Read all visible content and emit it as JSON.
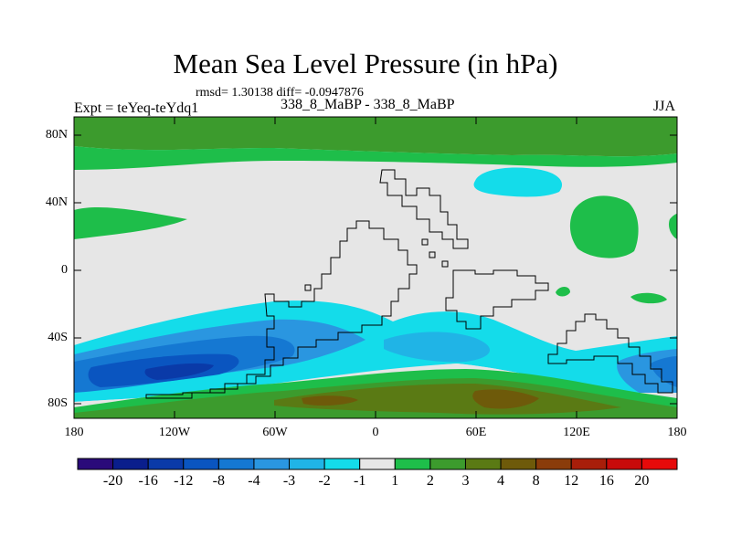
{
  "title": "Mean Sea Level Pressure (in hPa)",
  "stats": "rmsd= 1.30138 diff= -0.0947876",
  "experiment": "Expt = teYeq-teYdq1",
  "period": "338_8_MaBP - 338_8_MaBP",
  "season": "JJA",
  "axes": {
    "lat_labels": [
      "80N",
      "40N",
      "0",
      "40S",
      "80S"
    ],
    "lon_labels": [
      "180",
      "120W",
      "60W",
      "0",
      "60E",
      "120E",
      "180"
    ]
  },
  "colorbar": {
    "colors": [
      "#2a0a7a",
      "#0a1e8c",
      "#0a3aa8",
      "#0a55c0",
      "#1578d2",
      "#2a96e0",
      "#20b4e6",
      "#14dcea",
      "#e6e6e6",
      "#1ebe4a",
      "#3c9b2d",
      "#5a7a14",
      "#6e5a0a",
      "#8a3c0a",
      "#a81e0a",
      "#c80a0a",
      "#e60a0a"
    ],
    "labels": [
      "-20",
      "-16",
      "-12",
      "-8",
      "-4",
      "-3",
      "-2",
      "-1",
      "1",
      "2",
      "3",
      "4",
      "8",
      "12",
      "16",
      "20"
    ]
  }
}
